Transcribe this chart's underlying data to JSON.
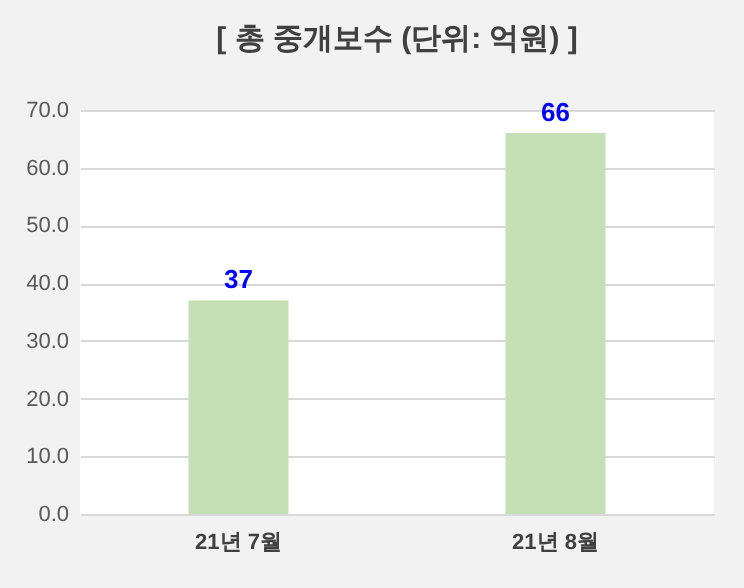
{
  "chart_data": {
    "type": "bar",
    "title": "[ 총 중개보수 (단위: 억원) ]",
    "categories": [
      "21년 7월",
      "21년 8월"
    ],
    "values": [
      37,
      66
    ],
    "color": "#c5e0b4",
    "ylim": [
      0,
      70
    ],
    "yticks": [
      {
        "value": 0,
        "label": "0.0"
      },
      {
        "value": 10,
        "label": "10.0"
      },
      {
        "value": 20,
        "label": "20.0"
      },
      {
        "value": 30,
        "label": "30.0"
      },
      {
        "value": 40,
        "label": "40.0"
      },
      {
        "value": 50,
        "label": "50.0"
      },
      {
        "value": 60,
        "label": "60.0"
      },
      {
        "value": 70,
        "label": "70.0"
      }
    ],
    "grid": "y",
    "data_labels": true
  }
}
